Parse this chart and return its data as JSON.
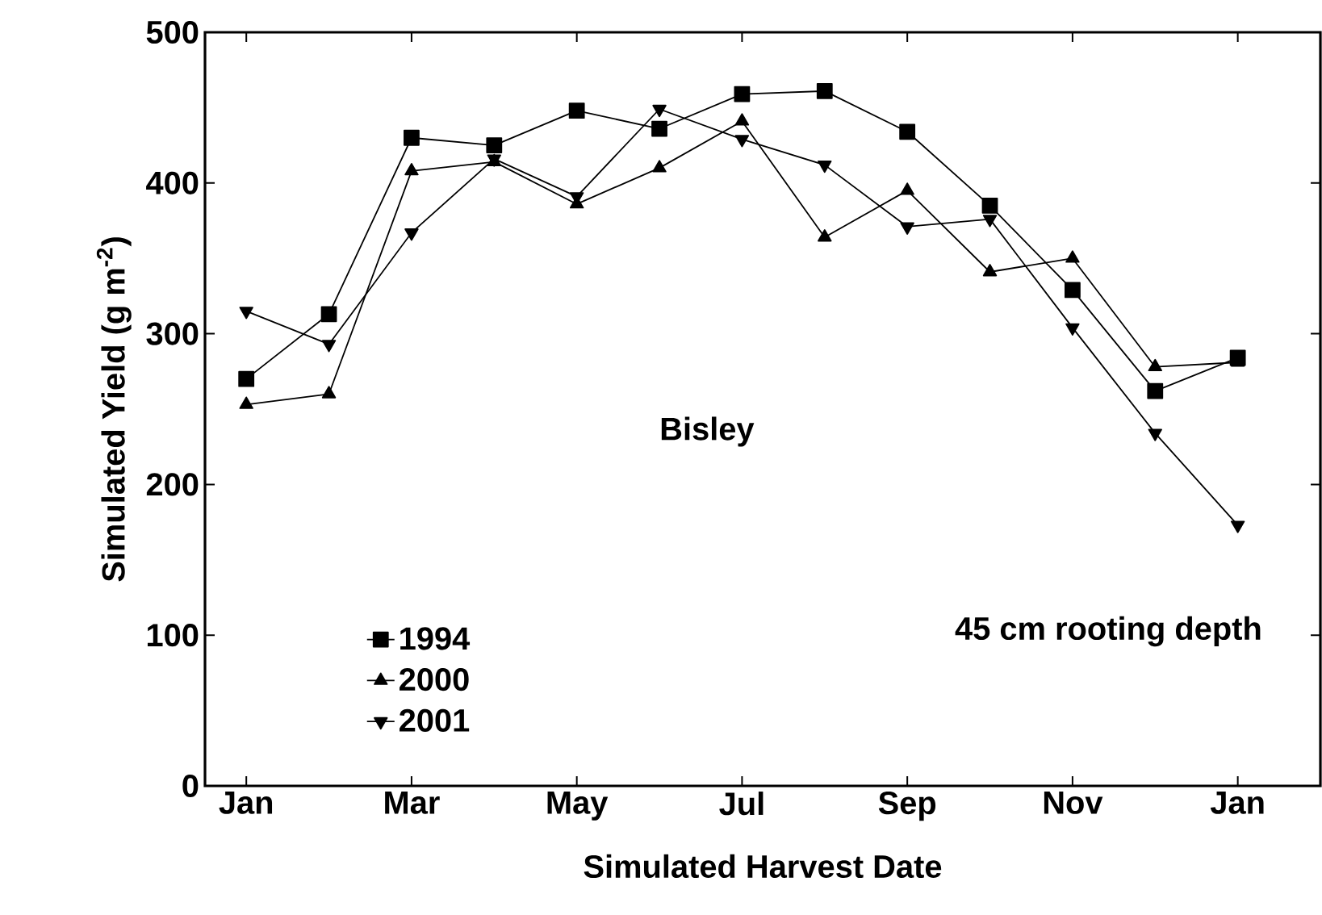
{
  "chart_data": {
    "type": "line",
    "xlabel": "Simulated Harvest Date",
    "ylabel": "Simulated Yield (g m$^{-2}$)",
    "categories": [
      "Jan",
      null,
      "Mar",
      null,
      "May",
      null,
      "Jul",
      null,
      "Sep",
      null,
      "Nov",
      null,
      "Jan"
    ],
    "series": [
      {
        "name": "1994",
        "color": "#000000",
        "marker": "square",
        "values": [
          270,
          313,
          430,
          425,
          448,
          436,
          459,
          461,
          434,
          385,
          329,
          262,
          284
        ]
      },
      {
        "name": "2000",
        "color": "#000000",
        "marker": "triangle",
        "values": [
          253,
          260,
          408,
          414,
          386,
          410,
          441,
          364,
          395,
          341,
          350,
          278,
          281
        ]
      },
      {
        "name": "2001",
        "color": "#000000",
        "marker": "triangle-down",
        "values": [
          315,
          293,
          367,
          416,
          391,
          449,
          429,
          412,
          371,
          376,
          304,
          234,
          173
        ]
      }
    ],
    "ylim": [
      0,
      500
    ],
    "yticks": [
      0,
      100,
      200,
      300,
      400,
      500
    ],
    "annotations": [
      "Bisley",
      "45 cm rooting depth"
    ],
    "legend": "bottom left",
    "grid": false,
    "line_style": "solid"
  }
}
